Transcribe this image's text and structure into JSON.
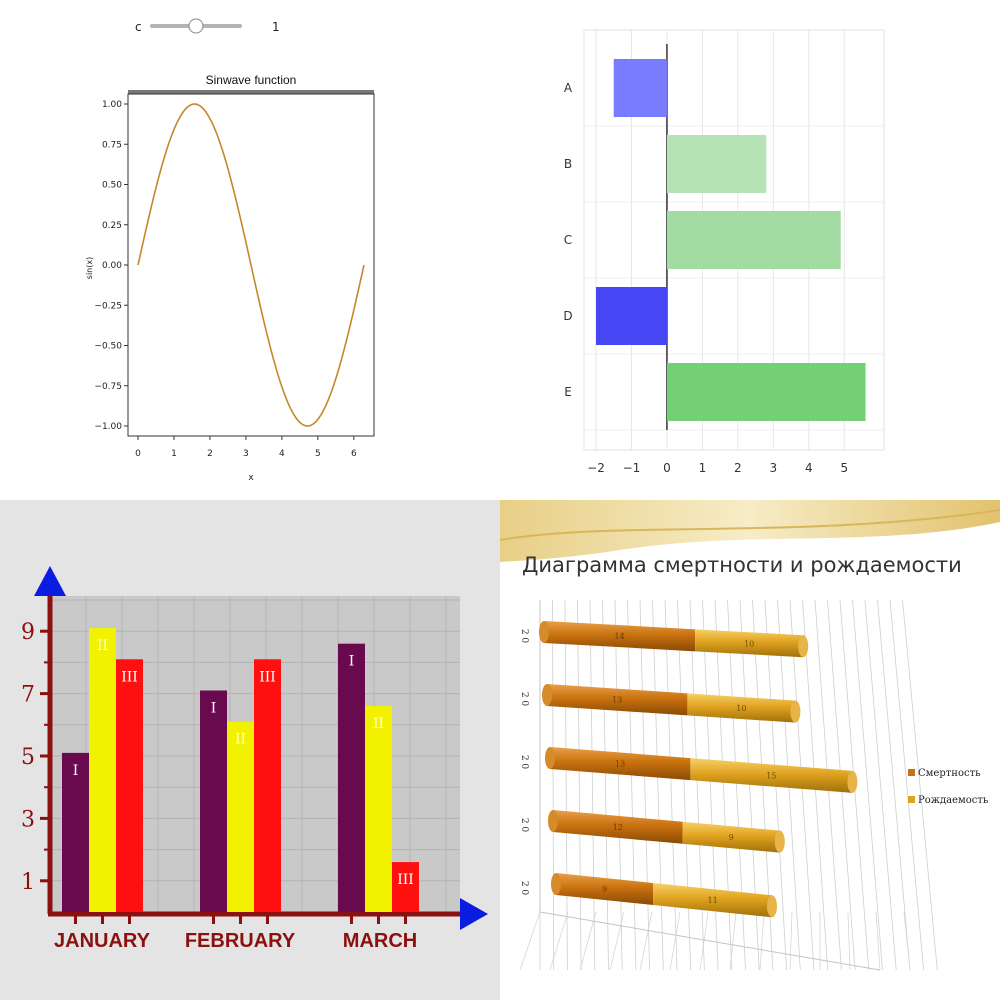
{
  "slider": {
    "label": "c",
    "value": "1",
    "level": 0.5
  },
  "chart_data": [
    {
      "type": "line",
      "title": "Sinwave function",
      "xlabel": "x",
      "ylabel": "sin(x)",
      "xlim": [
        0,
        6.283
      ],
      "ylim": [
        -1.05,
        1.05
      ],
      "x_ticks": [
        "0",
        "1",
        "2",
        "3",
        "4",
        "5",
        "6"
      ],
      "y_ticks": [
        "1.00",
        "0.75",
        "0.50",
        "0.25",
        "0.00",
        "−0.25",
        "−0.50",
        "−0.75",
        "−1.00"
      ],
      "series": [
        {
          "function": "sin(c·x)",
          "x_range": [
            0,
            6.283
          ],
          "color": "#c8862a"
        }
      ],
      "grid": false
    },
    {
      "type": "bar",
      "orientation": "horizontal",
      "categories": [
        "A",
        "B",
        "C",
        "D",
        "E"
      ],
      "values": [
        -1.5,
        2.8,
        4.9,
        -2.0,
        5.6
      ],
      "x_ticks": [
        "−2",
        "−1",
        "0",
        "1",
        "2",
        "3",
        "4",
        "5"
      ],
      "xlim": [
        -2.2,
        5.8
      ],
      "colors": [
        "#7a7cff",
        "#b5e3b5",
        "#a2dca2",
        "#4646f5",
        "#74d074"
      ],
      "grid": true
    },
    {
      "type": "bar",
      "categories": [
        "January",
        "February",
        "March"
      ],
      "series": [
        {
          "name": "I",
          "values": [
            5.1,
            7.1,
            8.6
          ],
          "color": "#6a0a4e"
        },
        {
          "name": "II",
          "values": [
            9.1,
            6.1,
            6.6
          ],
          "color": "#f2f200"
        },
        {
          "name": "III",
          "values": [
            8.1,
            8.1,
            1.6
          ],
          "color": "#ff1010"
        }
      ],
      "y_ticks": [
        "9",
        "7",
        "5",
        "3",
        "1"
      ],
      "ylim": [
        0,
        10
      ],
      "grid": true
    },
    {
      "type": "bar",
      "orientation": "horizontal-3d-stacked",
      "title": "Диаграмма смертности и рождаемости",
      "categories": [
        "2 0",
        "2 0",
        "2 0",
        "2 0",
        "2 0"
      ],
      "series": [
        {
          "name": "Смертность",
          "values": [
            14,
            13,
            13,
            12,
            9
          ],
          "labels": [
            "14",
            "13",
            "13",
            "12",
            "9"
          ],
          "color": "#c9720f"
        },
        {
          "name": "Рождаемость",
          "values": [
            10,
            10,
            15,
            9,
            11
          ],
          "labels": [
            "10",
            "10",
            "15",
            "9",
            "11"
          ],
          "color": "#e0a320"
        }
      ],
      "legend": "right"
    }
  ]
}
